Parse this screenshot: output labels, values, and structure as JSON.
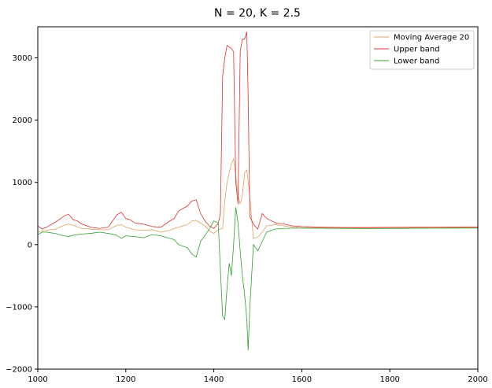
{
  "chart_data": {
    "type": "line",
    "title": "N = 20, K = 2.5",
    "xlabel": "",
    "ylabel": "",
    "xlim": [
      1000,
      2000
    ],
    "ylim": [
      -2000,
      3500
    ],
    "x_ticks": [
      1000,
      1200,
      1400,
      1600,
      1800,
      2000
    ],
    "y_ticks": [
      -2000,
      -1000,
      0,
      1000,
      2000,
      3000
    ],
    "grid": false,
    "legend_position": "top-right",
    "series": [
      {
        "name": "Moving Average 20",
        "color": "#e0a060",
        "x": [
          1000,
          1020,
          1040,
          1060,
          1070,
          1080,
          1100,
          1120,
          1140,
          1160,
          1180,
          1190,
          1200,
          1220,
          1240,
          1260,
          1280,
          1300,
          1310,
          1320,
          1340,
          1350,
          1360,
          1380,
          1390,
          1400,
          1410,
          1420,
          1425,
          1430,
          1440,
          1445,
          1450,
          1455,
          1460,
          1465,
          1470,
          1475,
          1480,
          1490,
          1500,
          1510,
          1520,
          1540,
          1560,
          1580,
          1600,
          1650,
          1700,
          1750,
          1800,
          1850,
          1900,
          1950,
          2000
        ],
        "y": [
          200,
          230,
          250,
          310,
          330,
          310,
          260,
          250,
          240,
          240,
          310,
          320,
          280,
          240,
          230,
          240,
          200,
          230,
          260,
          280,
          320,
          380,
          390,
          300,
          220,
          180,
          240,
          260,
          700,
          1000,
          1300,
          1380,
          1100,
          800,
          650,
          800,
          1150,
          1200,
          900,
          100,
          120,
          200,
          300,
          320,
          300,
          280,
          270,
          270,
          265,
          265,
          268,
          270,
          272,
          273,
          275
        ]
      },
      {
        "name": "Upper band",
        "color": "#e03030",
        "x": [
          1000,
          1010,
          1020,
          1040,
          1060,
          1070,
          1080,
          1090,
          1100,
          1120,
          1140,
          1160,
          1180,
          1190,
          1200,
          1210,
          1220,
          1240,
          1260,
          1280,
          1300,
          1310,
          1320,
          1340,
          1350,
          1360,
          1370,
          1380,
          1390,
          1400,
          1410,
          1415,
          1420,
          1425,
          1430,
          1440,
          1445,
          1450,
          1455,
          1460,
          1465,
          1470,
          1475,
          1478,
          1482,
          1490,
          1500,
          1510,
          1520,
          1540,
          1560,
          1580,
          1600,
          1650,
          1700,
          1750,
          1800,
          1850,
          1900,
          1950,
          2000
        ],
        "y": [
          300,
          250,
          280,
          360,
          460,
          490,
          400,
          380,
          330,
          280,
          260,
          280,
          480,
          520,
          420,
          400,
          350,
          330,
          290,
          280,
          380,
          420,
          540,
          620,
          700,
          720,
          500,
          380,
          300,
          260,
          340,
          500,
          2700,
          3000,
          3200,
          3150,
          3100,
          1000,
          650,
          3100,
          3300,
          3300,
          3420,
          2400,
          450,
          330,
          250,
          500,
          420,
          350,
          330,
          300,
          290,
          280,
          275,
          275,
          278,
          280,
          282,
          283,
          285
        ]
      },
      {
        "name": "Lower band",
        "color": "#30a030",
        "x": [
          1000,
          1010,
          1020,
          1040,
          1060,
          1070,
          1080,
          1100,
          1120,
          1140,
          1160,
          1180,
          1190,
          1200,
          1220,
          1240,
          1260,
          1280,
          1300,
          1310,
          1320,
          1340,
          1350,
          1360,
          1370,
          1380,
          1390,
          1400,
          1410,
          1420,
          1425,
          1430,
          1435,
          1440,
          1445,
          1450,
          1455,
          1460,
          1465,
          1470,
          1475,
          1478,
          1482,
          1490,
          1500,
          1510,
          1520,
          1540,
          1560,
          1580,
          1600,
          1650,
          1700,
          1750,
          1800,
          1850,
          1900,
          1950,
          2000
        ],
        "y": [
          160,
          200,
          200,
          180,
          140,
          130,
          150,
          170,
          180,
          200,
          180,
          150,
          100,
          140,
          130,
          110,
          160,
          140,
          100,
          80,
          0,
          -50,
          -150,
          -200,
          50,
          150,
          250,
          380,
          350,
          -1150,
          -1200,
          -700,
          -300,
          -500,
          0,
          600,
          350,
          -100,
          -500,
          -800,
          -1200,
          -1700,
          -1000,
          0,
          -100,
          50,
          200,
          250,
          260,
          265,
          265,
          262,
          260,
          258,
          260,
          262,
          263,
          265,
          265
        ]
      }
    ]
  }
}
